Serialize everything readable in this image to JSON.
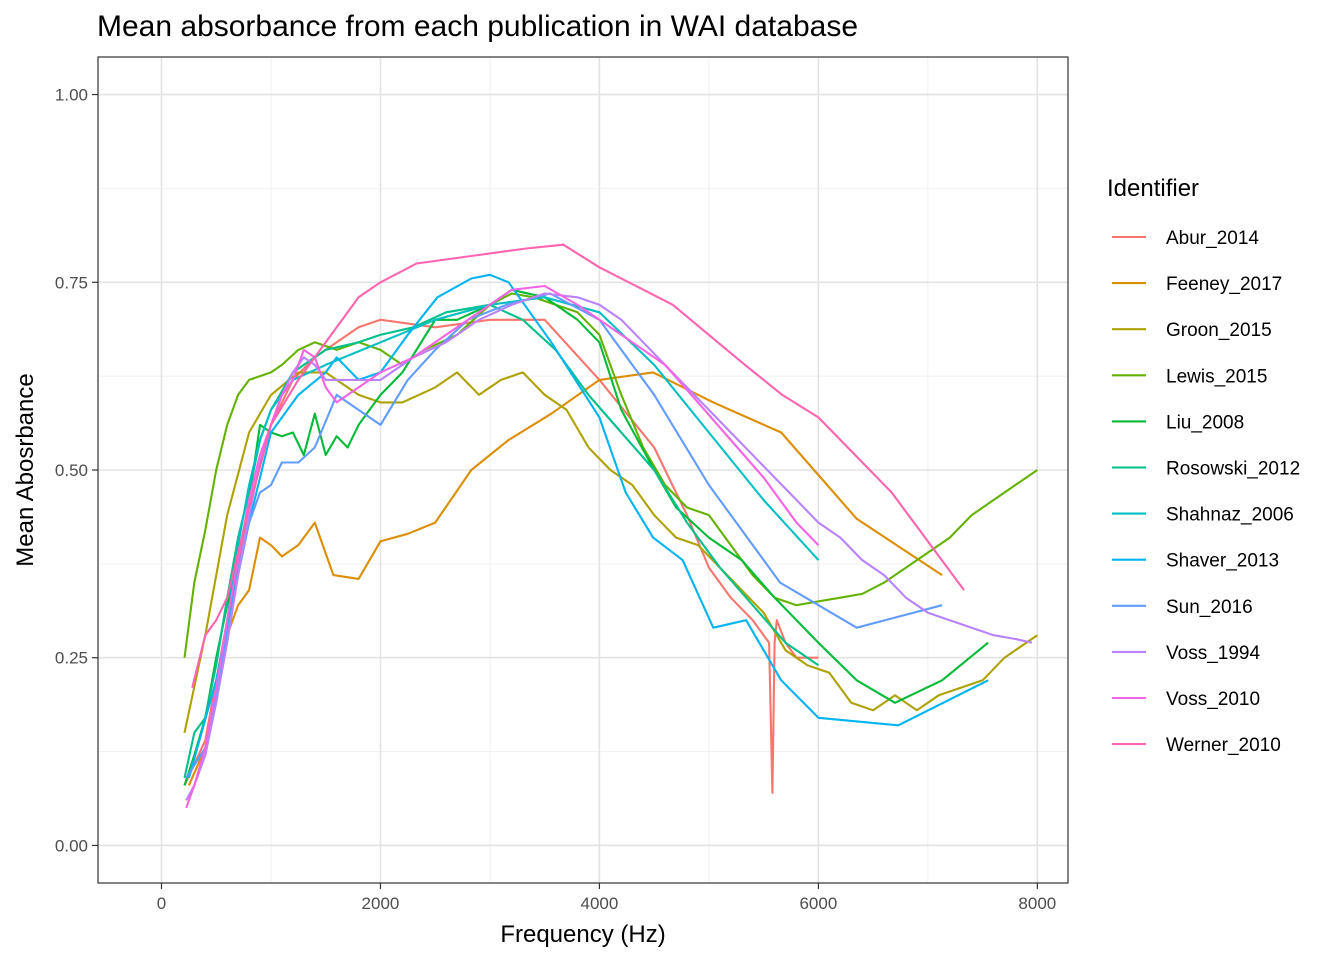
{
  "chart_data": {
    "type": "line",
    "title": "Mean absorbance from each publication in WAI database",
    "xlabel": "Frequency (Hz)",
    "ylabel": "Mean Abosrbance",
    "xlim": [
      -580,
      8280
    ],
    "ylim": [
      -0.05,
      1.05
    ],
    "xticks": [
      0,
      2000,
      4000,
      6000,
      8000
    ],
    "xtick_labels": [
      "0",
      "2000",
      "4000",
      "6000",
      "8000"
    ],
    "yticks": [
      0,
      0.25,
      0.5,
      0.75,
      1
    ],
    "ytick_labels": [
      "0.00",
      "0.25",
      "0.50",
      "0.75",
      "1.00"
    ],
    "grid": true,
    "legend": {
      "title": "Identifier",
      "position": "right"
    },
    "series": [
      {
        "name": "Abur_2014",
        "color": "#F8766D",
        "x": [
          210,
          400,
          600,
          800,
          1000,
          1200,
          1400,
          1600,
          1800,
          2000,
          2500,
          3000,
          3500,
          4000,
          4500,
          4800,
          5000,
          5200,
          5400,
          5550,
          5580,
          5600,
          5620,
          5700,
          5800,
          6000
        ],
        "y": [
          0.08,
          0.14,
          0.3,
          0.45,
          0.56,
          0.62,
          0.65,
          0.67,
          0.69,
          0.7,
          0.69,
          0.7,
          0.7,
          0.62,
          0.53,
          0.44,
          0.37,
          0.33,
          0.3,
          0.27,
          0.07,
          0.27,
          0.3,
          0.27,
          0.25,
          0.25
        ]
      },
      {
        "name": "Feeney_2017",
        "color": "#DB8E00",
        "x": [
          250,
          400,
          600,
          700,
          800,
          900,
          1000,
          1100,
          1250,
          1400,
          1570,
          1800,
          2000,
          2250,
          2500,
          2830,
          3170,
          3560,
          4000,
          4490,
          5040,
          5660,
          6350,
          7130
        ],
        "y": [
          0.08,
          0.13,
          0.28,
          0.32,
          0.34,
          0.41,
          0.4,
          0.385,
          0.4,
          0.43,
          0.36,
          0.355,
          0.405,
          0.415,
          0.43,
          0.5,
          0.54,
          0.575,
          0.62,
          0.63,
          0.59,
          0.55,
          0.435,
          0.36
        ]
      },
      {
        "name": "Groon_2015",
        "color": "#AEA200",
        "x": [
          210,
          400,
          600,
          800,
          1000,
          1250,
          1500,
          1800,
          2000,
          2200,
          2500,
          2700,
          2900,
          3100,
          3300,
          3500,
          3700,
          3900,
          4100,
          4300,
          4500,
          4700,
          4900,
          5100,
          5300,
          5500,
          5700,
          5900,
          6100,
          6300,
          6500,
          6700,
          6900,
          7100,
          7300,
          7500,
          7700,
          8000
        ],
        "y": [
          0.15,
          0.28,
          0.44,
          0.55,
          0.6,
          0.63,
          0.63,
          0.6,
          0.59,
          0.59,
          0.61,
          0.63,
          0.6,
          0.62,
          0.63,
          0.6,
          0.58,
          0.53,
          0.5,
          0.48,
          0.44,
          0.41,
          0.4,
          0.37,
          0.34,
          0.31,
          0.26,
          0.24,
          0.23,
          0.19,
          0.18,
          0.2,
          0.18,
          0.2,
          0.21,
          0.22,
          0.25,
          0.28
        ]
      },
      {
        "name": "Lewis_2015",
        "color": "#64B200",
        "x": [
          210,
          300,
          400,
          500,
          600,
          700,
          800,
          900,
          1000,
          1100,
          1250,
          1400,
          1600,
          1800,
          2000,
          2200,
          2400,
          2700,
          3000,
          3200,
          3400,
          3600,
          3800,
          4000,
          4200,
          4400,
          4600,
          4800,
          5000,
          5200,
          5400,
          5600,
          5800,
          6000,
          6200,
          6400,
          6600,
          6800,
          7000,
          7200,
          7400,
          7600,
          7800,
          8000
        ],
        "y": [
          0.25,
          0.35,
          0.42,
          0.5,
          0.56,
          0.6,
          0.62,
          0.625,
          0.63,
          0.64,
          0.66,
          0.67,
          0.66,
          0.67,
          0.66,
          0.64,
          0.66,
          0.68,
          0.72,
          0.735,
          0.73,
          0.72,
          0.71,
          0.68,
          0.6,
          0.53,
          0.48,
          0.45,
          0.44,
          0.4,
          0.36,
          0.33,
          0.32,
          0.325,
          0.33,
          0.335,
          0.35,
          0.37,
          0.39,
          0.41,
          0.44,
          0.46,
          0.48,
          0.5
        ]
      },
      {
        "name": "Liu_2008",
        "color": "#00BA38",
        "x": [
          210,
          300,
          400,
          500,
          600,
          700,
          800,
          900,
          1000,
          1100,
          1200,
          1300,
          1400,
          1500,
          1600,
          1700,
          1800,
          2000,
          2200,
          2500,
          2700,
          3000,
          3200,
          3500,
          3800,
          4000,
          4200,
          4500,
          4700,
          5000,
          5300,
          5600,
          6000,
          6350,
          6700,
          7130,
          7550
        ],
        "y": [
          0.08,
          0.12,
          0.17,
          0.25,
          0.32,
          0.38,
          0.46,
          0.56,
          0.55,
          0.545,
          0.55,
          0.52,
          0.575,
          0.52,
          0.545,
          0.53,
          0.56,
          0.6,
          0.63,
          0.7,
          0.7,
          0.72,
          0.74,
          0.73,
          0.7,
          0.67,
          0.58,
          0.5,
          0.45,
          0.41,
          0.38,
          0.33,
          0.27,
          0.22,
          0.19,
          0.22,
          0.27
        ]
      },
      {
        "name": "Rosowski_2012",
        "color": "#00C08B",
        "x": [
          210,
          300,
          400,
          500,
          600,
          700,
          800,
          900,
          1000,
          1200,
          1500,
          1800,
          2000,
          2300,
          2600,
          3000,
          3300,
          3600,
          3900,
          4200,
          4500,
          4800,
          5100,
          5400,
          5700,
          6000
        ],
        "y": [
          0.09,
          0.15,
          0.17,
          0.24,
          0.33,
          0.41,
          0.47,
          0.54,
          0.58,
          0.63,
          0.66,
          0.67,
          0.68,
          0.69,
          0.71,
          0.72,
          0.7,
          0.66,
          0.6,
          0.55,
          0.5,
          0.43,
          0.37,
          0.32,
          0.27,
          0.24
        ]
      },
      {
        "name": "Shahnaz_2006",
        "color": "#00BFC4",
        "x": [
          226,
          400,
          500,
          600,
          700,
          800,
          900,
          1000,
          1200,
          1500,
          2000,
          2500,
          3000,
          3500,
          4000,
          4500,
          5000,
          5500,
          6000
        ],
        "y": [
          0.09,
          0.13,
          0.2,
          0.3,
          0.4,
          0.48,
          0.54,
          0.58,
          0.62,
          0.64,
          0.67,
          0.7,
          0.72,
          0.73,
          0.71,
          0.64,
          0.55,
          0.46,
          0.38
        ]
      },
      {
        "name": "Shaver_2013",
        "color": "#00B4F0",
        "x": [
          250,
          500,
          750,
          1000,
          1250,
          1500,
          1600,
          1800,
          2000,
          2250,
          2520,
          2830,
          3000,
          3170,
          3560,
          4000,
          4240,
          4490,
          4760,
          5040,
          5340,
          5660,
          6000,
          6730,
          7550
        ],
        "y": [
          0.09,
          0.22,
          0.4,
          0.55,
          0.6,
          0.63,
          0.65,
          0.62,
          0.63,
          0.68,
          0.73,
          0.755,
          0.76,
          0.75,
          0.67,
          0.57,
          0.47,
          0.41,
          0.38,
          0.29,
          0.3,
          0.22,
          0.17,
          0.16,
          0.22
        ]
      },
      {
        "name": "Sun_2016",
        "color": "#619CFF",
        "x": [
          226,
          400,
          500,
          600,
          700,
          800,
          900,
          1000,
          1100,
          1250,
          1400,
          1600,
          2000,
          2250,
          2500,
          2800,
          3150,
          3550,
          4000,
          4500,
          5000,
          5650,
          6350,
          7130
        ],
        "y": [
          0.09,
          0.13,
          0.2,
          0.28,
          0.36,
          0.43,
          0.47,
          0.48,
          0.51,
          0.51,
          0.53,
          0.6,
          0.56,
          0.62,
          0.66,
          0.7,
          0.72,
          0.735,
          0.7,
          0.6,
          0.48,
          0.35,
          0.29,
          0.32
        ]
      },
      {
        "name": "Voss_1994",
        "color": "#B983FF",
        "x": [
          226,
          300,
          400,
          500,
          600,
          700,
          800,
          900,
          1000,
          1100,
          1200,
          1300,
          1400,
          1500,
          1600,
          1800,
          2000,
          2300,
          2600,
          2900,
          3200,
          3500,
          3800,
          4000,
          4200,
          4400,
          4600,
          4800,
          5000,
          5200,
          5400,
          5600,
          5800,
          6000,
          6200,
          6400,
          6600,
          6800,
          7000,
          7200,
          7400,
          7600,
          7800,
          7950
        ],
        "y": [
          0.06,
          0.08,
          0.12,
          0.19,
          0.27,
          0.36,
          0.44,
          0.51,
          0.56,
          0.6,
          0.63,
          0.65,
          0.64,
          0.62,
          0.62,
          0.62,
          0.62,
          0.65,
          0.67,
          0.7,
          0.72,
          0.735,
          0.73,
          0.72,
          0.7,
          0.67,
          0.64,
          0.61,
          0.58,
          0.55,
          0.52,
          0.49,
          0.46,
          0.43,
          0.41,
          0.38,
          0.36,
          0.33,
          0.31,
          0.3,
          0.29,
          0.28,
          0.275,
          0.27
        ]
      },
      {
        "name": "Voss_2010",
        "color": "#F564E3",
        "x": [
          226,
          300,
          400,
          500,
          600,
          700,
          800,
          900,
          1000,
          1100,
          1200,
          1300,
          1400,
          1500,
          1600,
          1800,
          2000,
          2300,
          2600,
          2900,
          3200,
          3500,
          3800,
          4000,
          4300,
          4600,
          4900,
          5200,
          5500,
          5800,
          6000
        ],
        "y": [
          0.05,
          0.08,
          0.13,
          0.21,
          0.3,
          0.38,
          0.46,
          0.52,
          0.56,
          0.6,
          0.62,
          0.66,
          0.65,
          0.61,
          0.59,
          0.61,
          0.63,
          0.65,
          0.68,
          0.71,
          0.74,
          0.745,
          0.72,
          0.7,
          0.67,
          0.64,
          0.59,
          0.54,
          0.49,
          0.43,
          0.4
        ]
      },
      {
        "name": "Werner_2010",
        "color": "#FF64B0",
        "x": [
          280,
          400,
          500,
          600,
          800,
          1000,
          1250,
          1600,
          1800,
          2000,
          2330,
          2830,
          3330,
          3670,
          4000,
          4670,
          5330,
          5670,
          6000,
          6670,
          7330
        ],
        "y": [
          0.21,
          0.28,
          0.3,
          0.33,
          0.45,
          0.56,
          0.62,
          0.69,
          0.73,
          0.75,
          0.775,
          0.785,
          0.795,
          0.8,
          0.77,
          0.72,
          0.64,
          0.6,
          0.57,
          0.47,
          0.34
        ]
      }
    ]
  }
}
